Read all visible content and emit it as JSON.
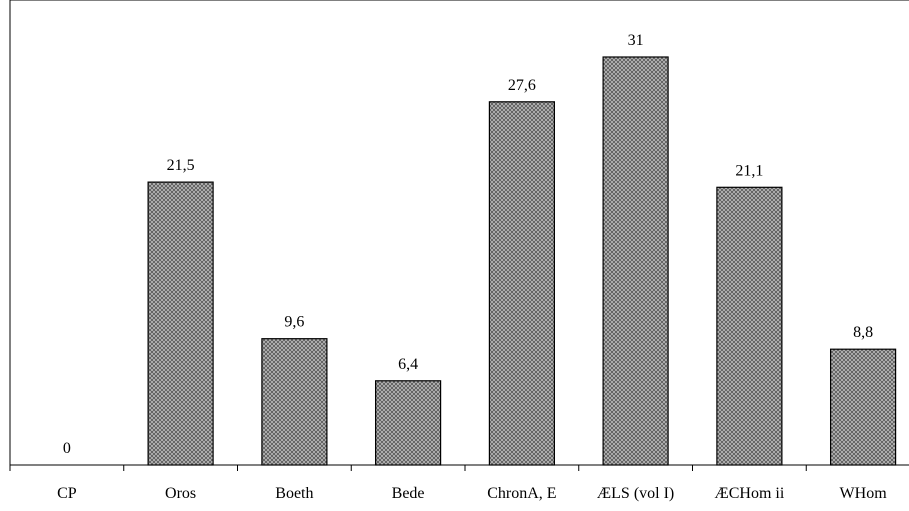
{
  "chart_data": {
    "type": "bar",
    "categories": [
      "CP",
      "Oros",
      "Boeth",
      "Bede",
      "ChronA, E",
      "ÆLS (vol I)",
      "ÆCHom ii",
      "WHom"
    ],
    "values": [
      0,
      21.5,
      9.6,
      6.4,
      27.6,
      31,
      21.1,
      8.8
    ],
    "data_labels": [
      "0",
      "21,5",
      "9,6",
      "6,4",
      "27,6",
      "31",
      "21,1",
      "8,8"
    ],
    "title": "",
    "xlabel": "",
    "ylabel": "",
    "ylim": [
      0,
      35
    ],
    "grid": false,
    "legend": "none",
    "bar_fill": "crosshatch-gray",
    "bar_stroke": "#000000"
  }
}
